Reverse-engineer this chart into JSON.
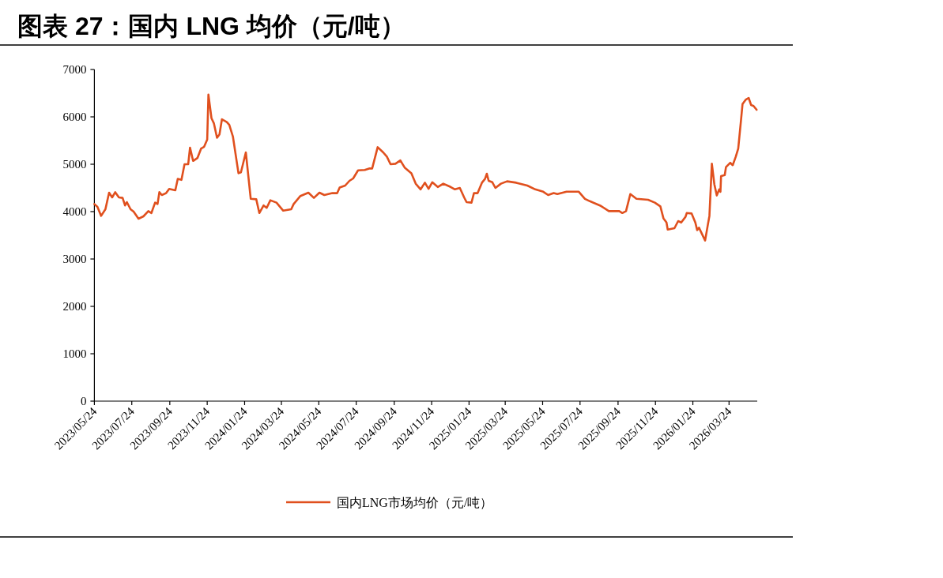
{
  "chart_data": {
    "type": "line",
    "title": "图表 27：国内 LNG 均价（元/吨）",
    "xlim": [
      "2023-05-24",
      "2026-05-09"
    ],
    "xticks": [
      {
        "value": "2023-05-24",
        "label": "2023/05/24"
      },
      {
        "value": "2023-07-24",
        "label": "2023/07/24"
      },
      {
        "value": "2023-09-24",
        "label": "2023/09/24"
      },
      {
        "value": "2023-11-24",
        "label": "2023/11/24"
      },
      {
        "value": "2024-01-24",
        "label": "2024/01/24"
      },
      {
        "value": "2024-03-24",
        "label": "2024/03/24"
      },
      {
        "value": "2024-05-24",
        "label": "2024/05/24"
      },
      {
        "value": "2024-07-24",
        "label": "2024/07/24"
      },
      {
        "value": "2024-09-24",
        "label": "2024/09/24"
      },
      {
        "value": "2024-11-24",
        "label": "2024/11/24"
      },
      {
        "value": "2025-01-24",
        "label": "2025/01/24"
      },
      {
        "value": "2025-03-24",
        "label": "2025/03/24"
      },
      {
        "value": "2025-05-24",
        "label": "2025/05/24"
      },
      {
        "value": "2025-07-24",
        "label": "2025/07/24"
      },
      {
        "value": "2025-09-24",
        "label": "2025/09/24"
      },
      {
        "value": "2025-11-24",
        "label": "2025/11/24"
      },
      {
        "value": "2026-01-24",
        "label": "2026/01/24"
      },
      {
        "value": "2026-03-24",
        "label": "2026/03/24"
      }
    ],
    "ylim": [
      0,
      7000
    ],
    "yticks": [
      0,
      1000,
      2000,
      3000,
      4000,
      5000,
      6000,
      7000
    ],
    "legend": "bottom",
    "x": [
      "2023-05-24",
      "2023-05-29",
      "2023-06-04",
      "2023-06-11",
      "2023-06-17",
      "2023-06-22",
      "2023-06-27",
      "2023-07-03",
      "2023-07-09",
      "2023-07-13",
      "2023-07-16",
      "2023-07-22",
      "2023-07-27",
      "2023-08-04",
      "2023-08-12",
      "2023-08-20",
      "2023-08-25",
      "2023-08-31",
      "2023-09-04",
      "2023-09-07",
      "2023-09-11",
      "2023-09-18",
      "2023-09-23",
      "2023-10-03",
      "2023-10-07",
      "2023-10-13",
      "2023-10-18",
      "2023-10-24",
      "2023-10-27",
      "2023-11-01",
      "2023-11-08",
      "2023-11-14",
      "2023-11-19",
      "2023-11-24",
      "2023-11-26",
      "2023-12-01",
      "2023-12-05",
      "2023-12-10",
      "2023-12-14",
      "2023-12-18",
      "2023-12-26",
      "2023-12-30",
      "2024-01-05",
      "2024-01-14",
      "2024-01-18",
      "2024-01-26",
      "2024-02-03",
      "2024-02-12",
      "2024-02-17",
      "2024-02-24",
      "2024-02-29",
      "2024-03-06",
      "2024-03-16",
      "2024-03-27",
      "2024-04-09",
      "2024-04-13",
      "2024-04-24",
      "2024-05-07",
      "2024-05-16",
      "2024-05-25",
      "2024-06-02",
      "2024-06-15",
      "2024-06-23",
      "2024-06-27",
      "2024-07-06",
      "2024-07-13",
      "2024-07-19",
      "2024-07-27",
      "2024-08-07",
      "2024-08-14",
      "2024-08-19",
      "2024-08-28",
      "2024-09-06",
      "2024-09-12",
      "2024-09-18",
      "2024-09-26",
      "2024-10-04",
      "2024-10-11",
      "2024-10-22",
      "2024-10-29",
      "2024-11-06",
      "2024-11-13",
      "2024-11-19",
      "2024-11-25",
      "2024-12-04",
      "2024-12-13",
      "2024-12-25",
      "2025-01-01",
      "2025-01-09",
      "2025-01-16",
      "2025-01-20",
      "2025-01-28",
      "2025-02-01",
      "2025-02-07",
      "2025-02-14",
      "2025-02-19",
      "2025-02-22",
      "2025-02-25",
      "2025-03-03",
      "2025-03-08",
      "2025-03-17",
      "2025-03-27",
      "2025-04-11",
      "2025-04-29",
      "2025-05-12",
      "2025-05-25",
      "2025-06-02",
      "2025-06-11",
      "2025-06-17",
      "2025-07-02",
      "2025-07-22",
      "2025-08-01",
      "2025-08-09",
      "2025-08-27",
      "2025-09-09",
      "2025-09-26",
      "2025-10-01",
      "2025-10-07",
      "2025-10-14",
      "2025-10-24",
      "2025-11-12",
      "2025-11-23",
      "2025-12-02",
      "2025-12-07",
      "2025-12-12",
      "2025-12-14",
      "2025-12-25",
      "2025-12-31",
      "2026-01-05",
      "2026-01-12",
      "2026-01-14",
      "2026-01-22",
      "2026-01-28",
      "2026-01-31",
      "2026-02-03",
      "2026-02-13",
      "2026-02-17",
      "2026-02-20",
      "2026-02-24",
      "2026-02-28",
      "2026-03-04",
      "2026-03-08",
      "2026-03-10",
      "2026-03-11",
      "2026-03-17",
      "2026-03-19",
      "2026-03-26",
      "2026-03-30",
      "2026-04-04",
      "2026-04-08",
      "2026-04-12",
      "2026-04-15",
      "2026-04-20",
      "2026-04-25",
      "2026-04-29",
      "2026-05-03",
      "2026-05-08"
    ],
    "series": [
      {
        "name": "国内LNG市场均价（元/吨）",
        "color": "#e0501e",
        "values": [
          4160,
          4100,
          3910,
          4050,
          4400,
          4300,
          4410,
          4300,
          4290,
          4130,
          4200,
          4050,
          4000,
          3850,
          3900,
          4010,
          3970,
          4190,
          4160,
          4410,
          4350,
          4390,
          4480,
          4450,
          4690,
          4670,
          5000,
          5000,
          5350,
          5070,
          5130,
          5330,
          5370,
          5520,
          6470,
          5970,
          5860,
          5560,
          5630,
          5950,
          5890,
          5830,
          5580,
          4810,
          4830,
          5250,
          4270,
          4260,
          3970,
          4130,
          4080,
          4240,
          4190,
          4020,
          4050,
          4160,
          4330,
          4400,
          4290,
          4400,
          4350,
          4390,
          4390,
          4510,
          4550,
          4650,
          4700,
          4870,
          4880,
          4910,
          4910,
          5360,
          5250,
          5160,
          5000,
          5010,
          5080,
          4930,
          4810,
          4590,
          4470,
          4610,
          4480,
          4620,
          4520,
          4590,
          4520,
          4470,
          4500,
          4300,
          4200,
          4190,
          4390,
          4390,
          4610,
          4690,
          4800,
          4650,
          4620,
          4500,
          4590,
          4640,
          4610,
          4550,
          4470,
          4420,
          4350,
          4390,
          4370,
          4420,
          4420,
          4270,
          4220,
          4120,
          4010,
          4010,
          3970,
          4010,
          4370,
          4270,
          4250,
          4190,
          4110,
          3860,
          3770,
          3620,
          3650,
          3800,
          3770,
          3890,
          3970,
          3960,
          3770,
          3610,
          3660,
          3390,
          3690,
          3910,
          5010,
          4580,
          4340,
          4470,
          4420,
          4750,
          4770,
          4940,
          5030,
          4980,
          5160,
          5330,
          5860,
          6270,
          6360,
          6400,
          6250,
          6230,
          6150
        ]
      }
    ]
  }
}
